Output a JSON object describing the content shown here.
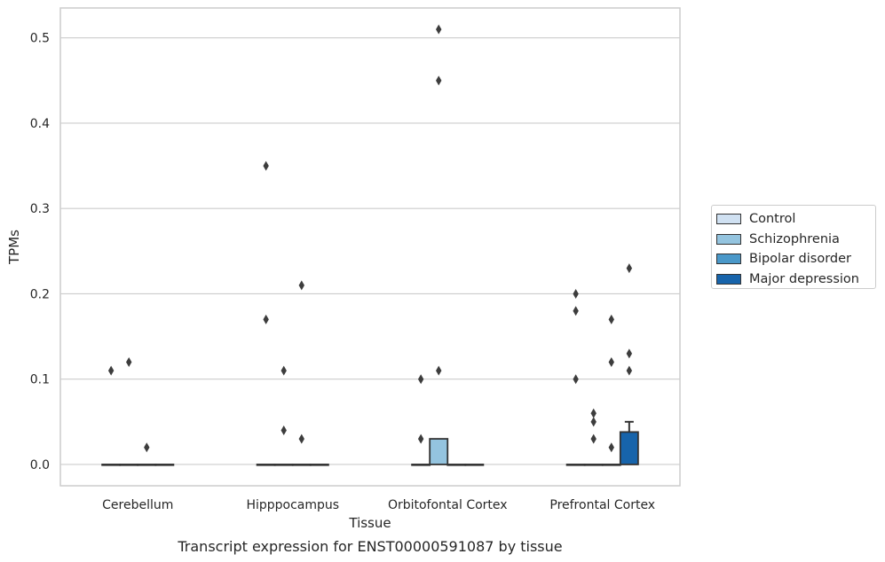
{
  "chart_data": {
    "type": "bar",
    "xlabel": "Tissue",
    "ylabel": "TPMs",
    "caption": "Transcript expression for ENST00000591087 by tissue",
    "ylim": [
      -0.025,
      0.535
    ],
    "yticks": [
      "0.0",
      "0.1",
      "0.2",
      "0.3",
      "0.4",
      "0.5"
    ],
    "ytick_values": [
      0.0,
      0.1,
      0.2,
      0.3,
      0.4,
      0.5
    ],
    "grid": true,
    "legend_position": "right",
    "categories": [
      "Cerebellum",
      "Hipppocampus",
      "Orbitofontal Cortex",
      "Prefrontal Cortex"
    ],
    "series": [
      {
        "name": "Control",
        "color": "#d0e1f2",
        "values": [
          0.0,
          0.0,
          0.0,
          0.0
        ],
        "errors": [
          0,
          0,
          0,
          0
        ]
      },
      {
        "name": "Schizophrenia",
        "color": "#94c4df",
        "values": [
          0.0,
          0.0,
          0.03,
          0.0
        ],
        "errors": [
          0,
          0,
          0,
          0
        ]
      },
      {
        "name": "Bipolar disorder",
        "color": "#4a98c9",
        "values": [
          0.0,
          0.0,
          0.0,
          0.0
        ],
        "errors": [
          0,
          0,
          0,
          0
        ]
      },
      {
        "name": "Major depression",
        "color": "#1764ab",
        "values": [
          0.0,
          0.0,
          0.0,
          0.038
        ],
        "errors": [
          0,
          0,
          0,
          0.012
        ]
      }
    ],
    "outliers": [
      {
        "category": 0,
        "series": 0,
        "y": 0.11
      },
      {
        "category": 0,
        "series": 1,
        "y": 0.12
      },
      {
        "category": 0,
        "series": 2,
        "y": 0.02
      },
      {
        "category": 1,
        "series": 0,
        "y": 0.35
      },
      {
        "category": 1,
        "series": 0,
        "y": 0.17
      },
      {
        "category": 1,
        "series": 1,
        "y": 0.11
      },
      {
        "category": 1,
        "series": 1,
        "y": 0.04
      },
      {
        "category": 1,
        "series": 2,
        "y": 0.21
      },
      {
        "category": 1,
        "series": 2,
        "y": 0.03
      },
      {
        "category": 2,
        "series": 1,
        "y": 0.51
      },
      {
        "category": 2,
        "series": 1,
        "y": 0.45
      },
      {
        "category": 2,
        "series": 1,
        "y": 0.11
      },
      {
        "category": 2,
        "series": 0,
        "y": 0.1
      },
      {
        "category": 2,
        "series": 0,
        "y": 0.03
      },
      {
        "category": 3,
        "series": 0,
        "y": 0.2
      },
      {
        "category": 3,
        "series": 0,
        "y": 0.18
      },
      {
        "category": 3,
        "series": 0,
        "y": 0.1
      },
      {
        "category": 3,
        "series": 1,
        "y": 0.06
      },
      {
        "category": 3,
        "series": 1,
        "y": 0.05
      },
      {
        "category": 3,
        "series": 1,
        "y": 0.03
      },
      {
        "category": 3,
        "series": 2,
        "y": 0.17
      },
      {
        "category": 3,
        "series": 2,
        "y": 0.12
      },
      {
        "category": 3,
        "series": 2,
        "y": 0.02
      },
      {
        "category": 3,
        "series": 3,
        "y": 0.23
      },
      {
        "category": 3,
        "series": 3,
        "y": 0.13
      },
      {
        "category": 3,
        "series": 3,
        "y": 0.11
      }
    ]
  }
}
